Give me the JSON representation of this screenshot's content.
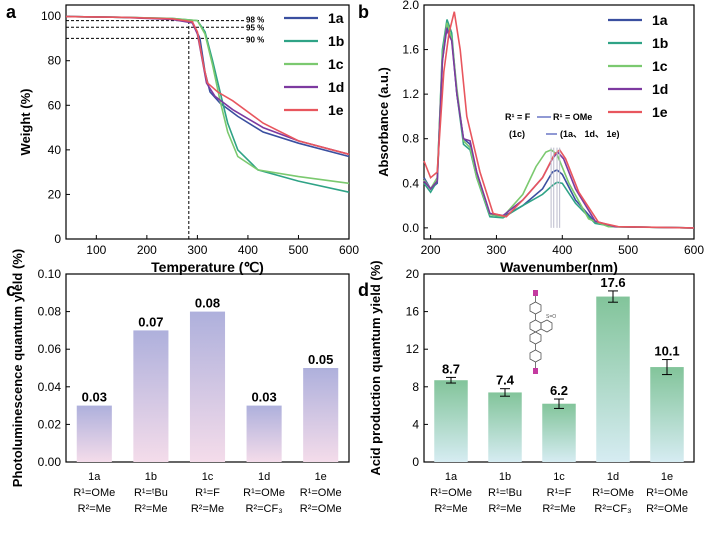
{
  "figure": {
    "panel_labels": [
      "a",
      "b",
      "c",
      "d"
    ]
  },
  "colors": {
    "1a": "#3a4fa0",
    "1b": "#2fa386",
    "1c": "#7bc96f",
    "1d": "#7d3aa0",
    "1e": "#e8565e",
    "bar_c_top": "#aeb0dc",
    "bar_c_bottom": "#f4dcea",
    "bar_d_top": "#82c49a",
    "bar_d_bottom": "#d6ecf2"
  },
  "chart_data": [
    {
      "id": "a",
      "type": "line",
      "xlabel": "Temperature (℃)",
      "ylabel": "Weight (%)",
      "xlim": [
        40,
        600
      ],
      "ylim": [
        0,
        105
      ],
      "xticks": [
        100,
        200,
        300,
        400,
        500,
        600
      ],
      "yticks": [
        0,
        20,
        40,
        60,
        80,
        100
      ],
      "annotations": [
        {
          "text": "98 %",
          "y": 98
        },
        {
          "text": "95 %",
          "y": 95
        },
        {
          "text": "90 %",
          "y": 90
        }
      ],
      "vline_x": 283,
      "series": [
        {
          "name": "1a",
          "points": [
            [
              40,
              99.8
            ],
            [
              150,
              99.5
            ],
            [
              250,
              98.8
            ],
            [
              290,
              97.5
            ],
            [
              305,
              90
            ],
            [
              315,
              75
            ],
            [
              325,
              66
            ],
            [
              345,
              61
            ],
            [
              380,
              55
            ],
            [
              430,
              48
            ],
            [
              500,
              43
            ],
            [
              600,
              37
            ]
          ]
        },
        {
          "name": "1b",
          "points": [
            [
              40,
              99.8
            ],
            [
              150,
              99.5
            ],
            [
              250,
              99
            ],
            [
              300,
              98
            ],
            [
              315,
              93
            ],
            [
              330,
              80
            ],
            [
              345,
              66
            ],
            [
              360,
              52
            ],
            [
              380,
              40
            ],
            [
              420,
              31
            ],
            [
              500,
              26
            ],
            [
              600,
              21
            ]
          ]
        },
        {
          "name": "1c",
          "points": [
            [
              40,
              99.8
            ],
            [
              150,
              99.5
            ],
            [
              250,
              99
            ],
            [
              300,
              98
            ],
            [
              315,
              92
            ],
            [
              330,
              78
            ],
            [
              345,
              62
            ],
            [
              360,
              48
            ],
            [
              380,
              37
            ],
            [
              420,
              31
            ],
            [
              500,
              28
            ],
            [
              600,
              25
            ]
          ]
        },
        {
          "name": "1d",
          "points": [
            [
              40,
              99.8
            ],
            [
              150,
              99.5
            ],
            [
              250,
              98.5
            ],
            [
              290,
              97
            ],
            [
              300,
              92
            ],
            [
              310,
              80
            ],
            [
              318,
              70
            ],
            [
              335,
              64
            ],
            [
              370,
              58
            ],
            [
              430,
              50
            ],
            [
              500,
              44
            ],
            [
              600,
              38
            ]
          ]
        },
        {
          "name": "1e",
          "points": [
            [
              40,
              99.8
            ],
            [
              150,
              99.5
            ],
            [
              250,
              98.8
            ],
            [
              290,
              97.5
            ],
            [
              300,
              93
            ],
            [
              312,
              78
            ],
            [
              320,
              70
            ],
            [
              340,
              66
            ],
            [
              370,
              62
            ],
            [
              430,
              52
            ],
            [
              500,
              44
            ],
            [
              600,
              38
            ]
          ]
        }
      ]
    },
    {
      "id": "b",
      "type": "line",
      "xlabel": "Wavenumber(nm)",
      "ylabel": "Absorbance (a.u.)",
      "xlim": [
        190,
        600
      ],
      "ylim": [
        -0.1,
        2.0
      ],
      "xticks": [
        200,
        300,
        400,
        500,
        600
      ],
      "yticks": [
        0.0,
        0.4,
        0.8,
        1.2,
        1.6,
        2.0
      ],
      "annotation_lines": [
        "R¹ = F",
        "R¹ = OMe",
        "(1c)",
        "(1a、 1d、 1e)"
      ],
      "series": [
        {
          "name": "1a",
          "points": [
            [
              190,
              0.45
            ],
            [
              200,
              0.35
            ],
            [
              210,
              0.4
            ],
            [
              218,
              1.5
            ],
            [
              225,
              1.8
            ],
            [
              232,
              1.7
            ],
            [
              240,
              1.2
            ],
            [
              250,
              0.8
            ],
            [
              260,
              0.75
            ],
            [
              270,
              0.5
            ],
            [
              290,
              0.12
            ],
            [
              310,
              0.1
            ],
            [
              340,
              0.2
            ],
            [
              370,
              0.35
            ],
            [
              385,
              0.5
            ],
            [
              392,
              0.52
            ],
            [
              400,
              0.48
            ],
            [
              420,
              0.25
            ],
            [
              450,
              0.05
            ],
            [
              480,
              0.01
            ],
            [
              600,
              0.0
            ]
          ]
        },
        {
          "name": "1b",
          "points": [
            [
              190,
              0.4
            ],
            [
              200,
              0.32
            ],
            [
              210,
              0.42
            ],
            [
              218,
              1.6
            ],
            [
              225,
              1.87
            ],
            [
              232,
              1.75
            ],
            [
              240,
              1.2
            ],
            [
              250,
              0.75
            ],
            [
              260,
              0.7
            ],
            [
              270,
              0.45
            ],
            [
              290,
              0.1
            ],
            [
              310,
              0.09
            ],
            [
              340,
              0.2
            ],
            [
              370,
              0.3
            ],
            [
              385,
              0.38
            ],
            [
              392,
              0.41
            ],
            [
              400,
              0.4
            ],
            [
              420,
              0.22
            ],
            [
              450,
              0.04
            ],
            [
              480,
              0.01
            ],
            [
              600,
              0.0
            ]
          ]
        },
        {
          "name": "1c",
          "points": [
            [
              190,
              0.43
            ],
            [
              200,
              0.35
            ],
            [
              210,
              0.45
            ],
            [
              218,
              1.55
            ],
            [
              225,
              1.84
            ],
            [
              232,
              1.7
            ],
            [
              240,
              1.25
            ],
            [
              250,
              0.78
            ],
            [
              260,
              0.72
            ],
            [
              270,
              0.45
            ],
            [
              290,
              0.12
            ],
            [
              310,
              0.1
            ],
            [
              340,
              0.3
            ],
            [
              360,
              0.55
            ],
            [
              375,
              0.68
            ],
            [
              383,
              0.7
            ],
            [
              392,
              0.66
            ],
            [
              410,
              0.4
            ],
            [
              440,
              0.08
            ],
            [
              470,
              0.01
            ],
            [
              600,
              0.0
            ]
          ]
        },
        {
          "name": "1d",
          "points": [
            [
              190,
              0.42
            ],
            [
              200,
              0.35
            ],
            [
              210,
              0.42
            ],
            [
              218,
              1.5
            ],
            [
              224,
              1.78
            ],
            [
              232,
              1.68
            ],
            [
              240,
              1.2
            ],
            [
              250,
              0.8
            ],
            [
              260,
              0.78
            ],
            [
              270,
              0.5
            ],
            [
              290,
              0.13
            ],
            [
              310,
              0.11
            ],
            [
              340,
              0.25
            ],
            [
              370,
              0.45
            ],
            [
              385,
              0.62
            ],
            [
              393,
              0.68
            ],
            [
              402,
              0.62
            ],
            [
              420,
              0.35
            ],
            [
              450,
              0.06
            ],
            [
              480,
              0.01
            ],
            [
              600,
              0.0
            ]
          ]
        },
        {
          "name": "1e",
          "points": [
            [
              190,
              0.6
            ],
            [
              200,
              0.45
            ],
            [
              210,
              0.5
            ],
            [
              220,
              1.4
            ],
            [
              228,
              1.75
            ],
            [
              236,
              1.94
            ],
            [
              245,
              1.6
            ],
            [
              255,
              1.0
            ],
            [
              265,
              0.75
            ],
            [
              275,
              0.5
            ],
            [
              295,
              0.13
            ],
            [
              315,
              0.1
            ],
            [
              340,
              0.25
            ],
            [
              370,
              0.45
            ],
            [
              388,
              0.66
            ],
            [
              396,
              0.7
            ],
            [
              405,
              0.62
            ],
            [
              425,
              0.32
            ],
            [
              455,
              0.05
            ],
            [
              485,
              0.01
            ],
            [
              600,
              0.0
            ]
          ]
        }
      ]
    },
    {
      "id": "c",
      "type": "bar",
      "ylabel": "Photoluminescence quantum yield (%)",
      "ylim": [
        0,
        0.1
      ],
      "yticks": [
        0.0,
        0.02,
        0.04,
        0.06,
        0.08,
        0.1
      ],
      "ytick_labels": [
        "0.00",
        "0.02",
        "0.04",
        "0.06",
        "0.08",
        "0.10"
      ],
      "categories": [
        "1a",
        "1b",
        "1c",
        "1d",
        "1e"
      ],
      "values": [
        0.03,
        0.07,
        0.08,
        0.03,
        0.05
      ],
      "value_labels": [
        "0.03",
        "0.07",
        "0.08",
        "0.03",
        "0.05"
      ],
      "subs1": [
        "R¹=OMe",
        "R¹=ᵗBu",
        "R¹=F",
        "R¹=OMe",
        "R¹=OMe"
      ],
      "subs2": [
        "R²=Me",
        "R²=Me",
        "R²=Me",
        "R²=CF₃",
        "R²=OMe"
      ]
    },
    {
      "id": "d",
      "type": "bar",
      "ylabel": "Acid production quantum yield (%)",
      "ylim": [
        0,
        20
      ],
      "yticks": [
        0,
        4,
        8,
        12,
        16,
        20
      ],
      "ytick_labels": [
        "0",
        "4",
        "8",
        "12",
        "16",
        "20"
      ],
      "categories": [
        "1a",
        "1b",
        "1c",
        "1d",
        "1e"
      ],
      "values": [
        8.7,
        7.4,
        6.2,
        17.6,
        10.1
      ],
      "errors": [
        0.3,
        0.4,
        0.5,
        0.6,
        0.8
      ],
      "value_labels": [
        "8.7",
        "7.4",
        "6.2",
        "17.6",
        "10.1"
      ],
      "subs1": [
        "R¹=OMe",
        "R¹=ᵗBu",
        "R¹=F",
        "R¹=OMe",
        "R¹=OMe"
      ],
      "subs2": [
        "R²=Me",
        "R²=Me",
        "R²=Me",
        "R²=CF₃",
        "R²=OMe"
      ]
    }
  ]
}
